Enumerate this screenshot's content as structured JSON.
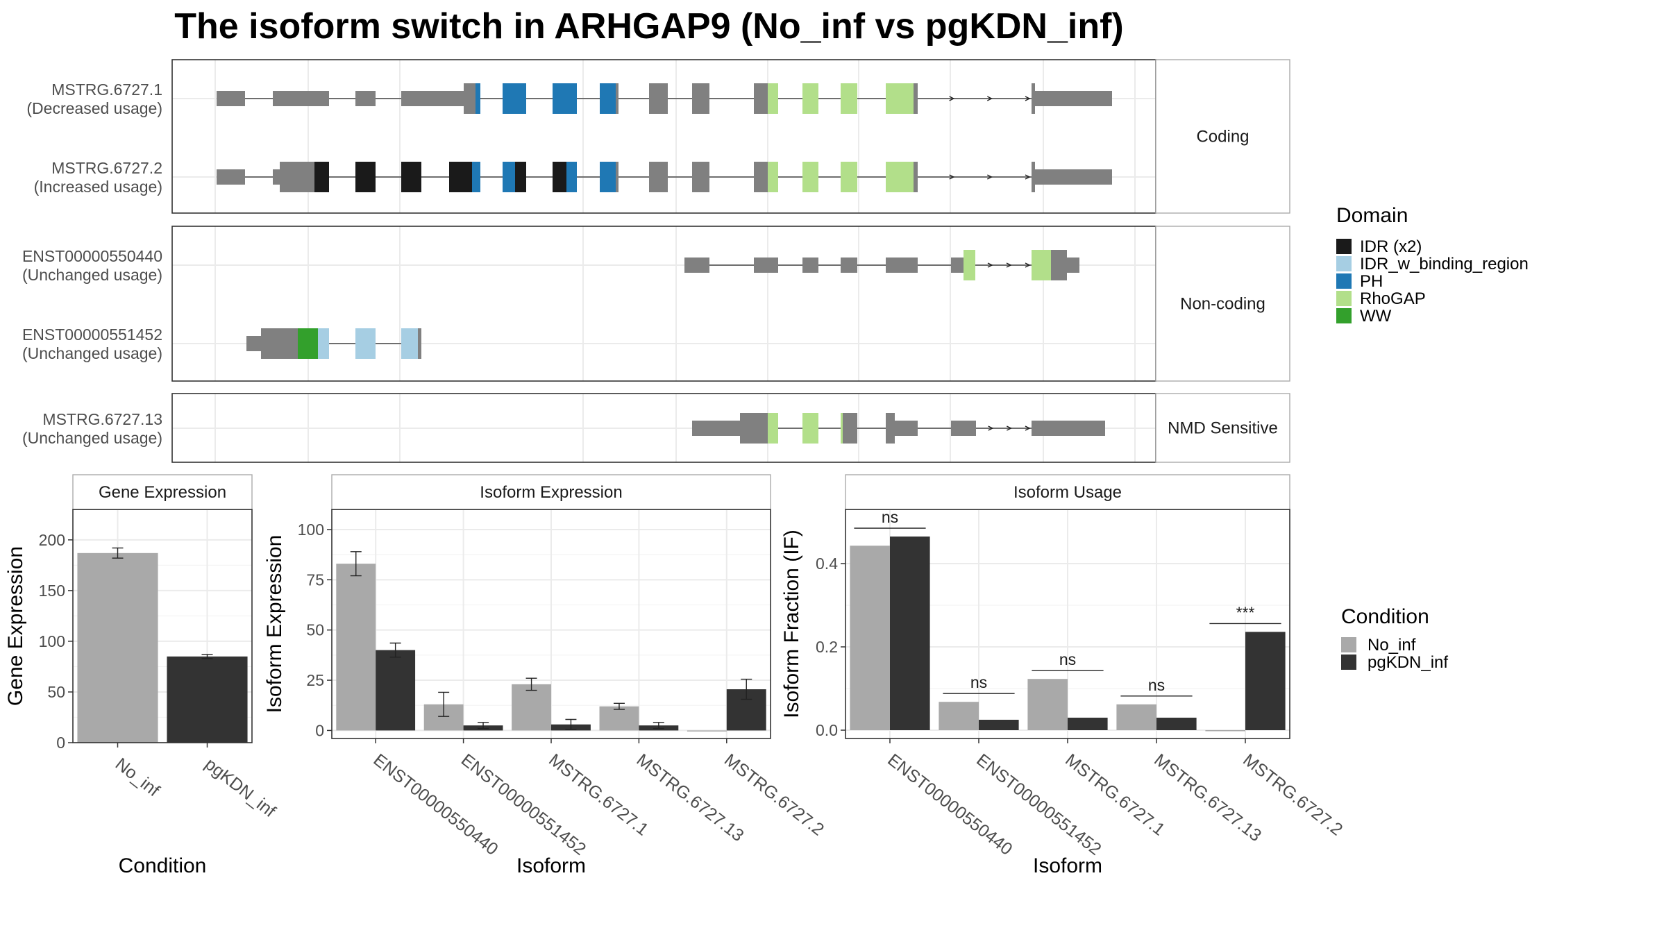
{
  "title": "The isoform switch in ARHGAP9 (No_inf vs pgKDN_inf)",
  "structure_panels": [
    {
      "label": "Coding",
      "isoforms": [
        {
          "name": "MSTRG.6727.1",
          "usage": "(Decreased usage)"
        },
        {
          "name": "MSTRG.6727.2",
          "usage": "(Increased usage)"
        }
      ]
    },
    {
      "label": "Non-coding",
      "isoforms": [
        {
          "name": "ENST00000550440",
          "usage": "(Unchanged usage)"
        },
        {
          "name": "ENST00000551452",
          "usage": "(Unchanged usage)"
        }
      ]
    },
    {
      "label": "NMD Sensitive",
      "isoforms": [
        {
          "name": "MSTRG.6727.13",
          "usage": "(Unchanged usage)"
        }
      ]
    }
  ],
  "domain_legend": {
    "title": "Domain",
    "items": [
      {
        "label": "IDR (x2)",
        "color": "#1a1a1a"
      },
      {
        "label": "IDR_w_binding_region",
        "color": "#a6cee3"
      },
      {
        "label": "PH",
        "color": "#1f78b4"
      },
      {
        "label": "RhoGAP",
        "color": "#b2df8a"
      },
      {
        "label": "WW",
        "color": "#33a02c"
      }
    ]
  },
  "condition_legend": {
    "title": "Condition",
    "items": [
      {
        "label": "No_inf",
        "color": "#a9a9a9"
      },
      {
        "label": "pgKDN_inf",
        "color": "#333333"
      }
    ]
  },
  "chart_data": [
    {
      "type": "bar",
      "strip": "Gene Expression",
      "xlabel": "Condition",
      "ylabel": "Gene Expression",
      "categories": [
        "No_inf",
        "pgKDN_inf"
      ],
      "values": [
        187,
        85
      ],
      "error": [
        5,
        2
      ],
      "ylim": [
        0,
        230
      ],
      "yticks": [
        0,
        50,
        100,
        150,
        200
      ]
    },
    {
      "type": "bar",
      "strip": "Isoform Expression",
      "xlabel": "Isoform",
      "ylabel": "Isoform Expression",
      "categories": [
        "ENST00000550440",
        "ENST00000551452",
        "MSTRG.6727.1",
        "MSTRG.6727.13",
        "MSTRG.6727.2"
      ],
      "series": [
        {
          "name": "No_inf",
          "values": [
            83,
            13,
            23,
            12,
            0
          ],
          "error": [
            6,
            6,
            3,
            1.5,
            0
          ]
        },
        {
          "name": "pgKDN_inf",
          "values": [
            40,
            2.5,
            3,
            2.5,
            20.5
          ],
          "error": [
            3.5,
            1.5,
            2.5,
            1.5,
            5
          ]
        }
      ],
      "ylim": [
        -4,
        110
      ],
      "yticks": [
        0,
        25,
        50,
        75,
        100
      ]
    },
    {
      "type": "bar",
      "strip": "Isoform Usage",
      "xlabel": "Isoform",
      "ylabel": "Isoform Fraction (IF)",
      "categories": [
        "ENST00000550440",
        "ENST00000551452",
        "MSTRG.6727.1",
        "MSTRG.6727.13",
        "MSTRG.6727.2"
      ],
      "series": [
        {
          "name": "No_inf",
          "values": [
            0.443,
            0.068,
            0.123,
            0.062,
            0.0
          ]
        },
        {
          "name": "pgKDN_inf",
          "values": [
            0.465,
            0.025,
            0.03,
            0.03,
            0.236
          ]
        }
      ],
      "significance": [
        "ns",
        "ns",
        "ns",
        "ns",
        "***"
      ],
      "ylim": [
        -0.02,
        0.53
      ],
      "yticks": [
        0.0,
        0.2,
        0.4
      ],
      "ytick_labels": [
        "0.0",
        "0.2",
        "0.4"
      ]
    }
  ]
}
